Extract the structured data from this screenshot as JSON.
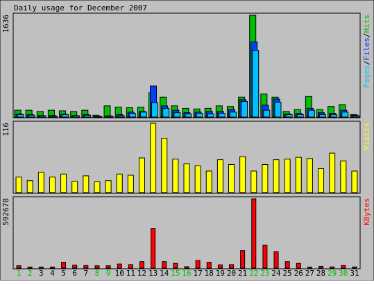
{
  "chart_data": {
    "type": "bar",
    "title": "Daily usage for December 2007",
    "categories": [
      "1",
      "2",
      "3",
      "4",
      "5",
      "6",
      "7",
      "8",
      "9",
      "10",
      "11",
      "12",
      "13",
      "14",
      "15",
      "16",
      "17",
      "18",
      "19",
      "20",
      "21",
      "22",
      "23",
      "24",
      "25",
      "26",
      "27",
      "28",
      "29",
      "30",
      "31"
    ],
    "weekend_days": [
      "1",
      "2",
      "8",
      "9",
      "15",
      "16",
      "22",
      "23",
      "29",
      "30"
    ],
    "colors": {
      "hits": "#00c000",
      "files": "#0040ff",
      "pages": "#00c0ff",
      "visits": "#ffff00",
      "kbytes": "#ff0000",
      "weekend_label": "#00c000",
      "weekday_label": "#000000",
      "panel_bg": "#c0c0c0",
      "frame_bg": "#c0c0c0"
    },
    "panels": [
      {
        "id": "hits",
        "scale_label": "1636",
        "ylim": [
          0,
          1636
        ],
        "legend": [
          {
            "text": "Pages",
            "color": "#00c0ff"
          },
          {
            "text": "/",
            "color": "#000000"
          },
          {
            "text": "Files",
            "color": "#0040ff"
          },
          {
            "text": "/",
            "color": "#000000"
          },
          {
            "text": "Hits",
            "color": "#00c000"
          }
        ],
        "series": [
          {
            "name": "Hits",
            "values": [
              110,
              110,
              90,
              110,
              100,
              90,
              110,
              30,
              180,
              160,
              150,
              160,
              390,
              320,
              180,
              140,
              130,
              140,
              180,
              170,
              320,
              1636,
              370,
              320,
              90,
              120,
              330,
              120,
              170,
              200,
              40
            ]
          },
          {
            "name": "Files",
            "values": [
              50,
              40,
              25,
              25,
              45,
              25,
              40,
              10,
              20,
              40,
              80,
              90,
              500,
              180,
              110,
              70,
              80,
              90,
              90,
              120,
              280,
              1210,
              190,
              290,
              50,
              60,
              140,
              70,
              60,
              110,
              30
            ]
          },
          {
            "name": "Pages",
            "values": [
              40,
              30,
              20,
              15,
              40,
              20,
              30,
              10,
              15,
              20,
              60,
              80,
              230,
              140,
              70,
              50,
              60,
              50,
              60,
              80,
              250,
              1070,
              110,
              240,
              40,
              40,
              110,
              40,
              40,
              80,
              20
            ]
          }
        ]
      },
      {
        "id": "visits",
        "scale_label": "116",
        "ylim": [
          0,
          116
        ],
        "legend": [
          {
            "text": "Visits",
            "color": "#ffff00"
          }
        ],
        "series": [
          {
            "name": "Visits",
            "values": [
              26,
              20,
              34,
              26,
              31,
              19,
              28,
              18,
              20,
              31,
              29,
              58,
              116,
              91,
              56,
              48,
              45,
              36,
              55,
              47,
              60,
              36,
              47,
              55,
              56,
              59,
              57,
              40,
              66,
              53,
              36
            ]
          }
        ]
      },
      {
        "id": "kbytes",
        "scale_label": "592678",
        "ylim": [
          0,
          592678
        ],
        "legend": [
          {
            "text": "KBytes",
            "color": "#ff0000"
          }
        ],
        "series": [
          {
            "name": "KBytes",
            "values": [
              20000,
              9000,
              9000,
              9000,
              50000,
              25000,
              22000,
              20000,
              20000,
              35000,
              30000,
              55000,
              340000,
              55000,
              40000,
              12000,
              65000,
              50000,
              28000,
              30000,
              150000,
              592678,
              195000,
              140000,
              55000,
              40000,
              8000,
              15000,
              10000,
              22000,
              10000
            ]
          }
        ]
      }
    ]
  }
}
